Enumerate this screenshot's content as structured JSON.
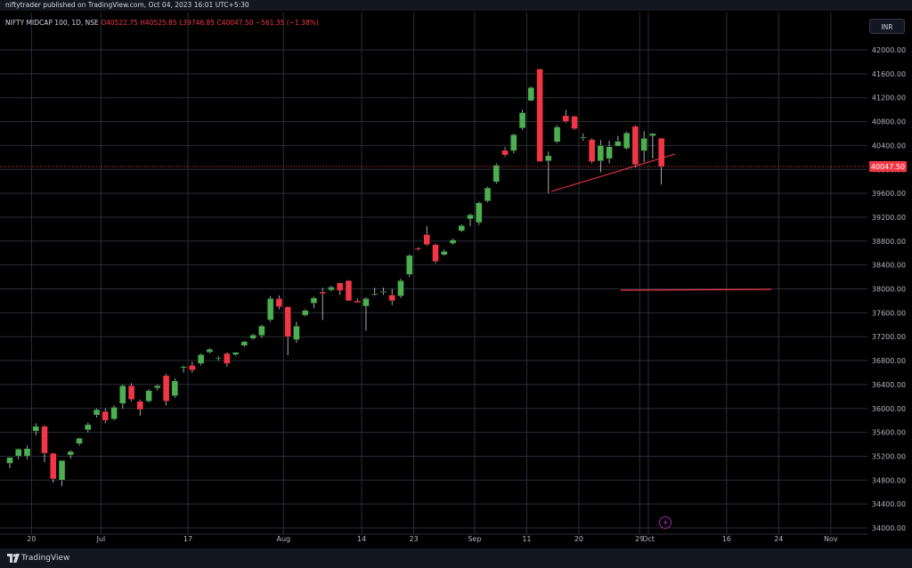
{
  "header": {
    "published": "niftytrader published on TradingView.com, Oct 04, 2023 16:01 UTC+5:30"
  },
  "symbol": {
    "name": "NIFTY MIDCAP 100, 1D, NSE",
    "open": "O40522.75",
    "high": "H40525.85",
    "low": "L39746.85",
    "close": "C40047.50",
    "change": "−561.35 (−1.38%)"
  },
  "currency_button": "INR",
  "last_price_label": "40047.50",
  "footer": {
    "brand": "TradingView"
  },
  "colors": {
    "up": "#4caf50",
    "down": "#f23645",
    "grid": "#2a2e39",
    "background": "#000000"
  },
  "chart_data": {
    "type": "candlestick",
    "y_ticks": [
      "42000.00",
      "41600.00",
      "41200.00",
      "40800.00",
      "40400.00",
      "40000.00",
      "39600.00",
      "39200.00",
      "38800.00",
      "38400.00",
      "38000.00",
      "37600.00",
      "37200.00",
      "36800.00",
      "36400.00",
      "36000.00",
      "35600.00",
      "35200.00",
      "34800.00",
      "34400.00",
      "34000.00"
    ],
    "y_ticks_values": [
      42000,
      41600,
      41200,
      40800,
      40400,
      40000,
      39600,
      39200,
      38800,
      38400,
      38000,
      37600,
      37200,
      36800,
      36400,
      36000,
      35600,
      35200,
      34800,
      34400,
      34000
    ],
    "ylim": [
      34000,
      42000
    ],
    "x_ticks": [
      {
        "label": "20",
        "index": 2.5
      },
      {
        "label": "Jul",
        "index": 10.5
      },
      {
        "label": "17",
        "index": 20.5
      },
      {
        "label": "Aug",
        "index": 31.5
      },
      {
        "label": "14",
        "index": 40.5
      },
      {
        "label": "23",
        "index": 46.5
      },
      {
        "label": "Sep",
        "index": 53.5
      },
      {
        "label": "11",
        "index": 59.5
      },
      {
        "label": "20",
        "index": 65.5
      },
      {
        "label": "29",
        "index": 72.5
      },
      {
        "label": "Oct",
        "index": 73.5
      },
      {
        "label": "16",
        "index": 82.5
      },
      {
        "label": "24",
        "index": 88.5
      },
      {
        "label": "Nov",
        "index": 94.5
      }
    ],
    "last_price": 40047.5,
    "candles": [
      {
        "o": 35080,
        "h": 35180,
        "l": 35000,
        "c": 35180
      },
      {
        "o": 35200,
        "h": 35330,
        "l": 35150,
        "c": 35320
      },
      {
        "o": 35200,
        "h": 35380,
        "l": 35150,
        "c": 35330
      },
      {
        "o": 35620,
        "h": 35750,
        "l": 35550,
        "c": 35700
      },
      {
        "o": 35700,
        "h": 35720,
        "l": 35100,
        "c": 35250
      },
      {
        "o": 35250,
        "h": 35260,
        "l": 34760,
        "c": 34820
      },
      {
        "o": 34800,
        "h": 35100,
        "l": 34700,
        "c": 35130
      },
      {
        "o": 35220,
        "h": 35300,
        "l": 35160,
        "c": 35280
      },
      {
        "o": 35410,
        "h": 35510,
        "l": 35380,
        "c": 35500
      },
      {
        "o": 35640,
        "h": 35760,
        "l": 35600,
        "c": 35730
      },
      {
        "o": 35890,
        "h": 36000,
        "l": 35850,
        "c": 35980
      },
      {
        "o": 35950,
        "h": 36000,
        "l": 35750,
        "c": 35800
      },
      {
        "o": 35820,
        "h": 36050,
        "l": 35800,
        "c": 36020
      },
      {
        "o": 36080,
        "h": 36400,
        "l": 36000,
        "c": 36380
      },
      {
        "o": 36380,
        "h": 36420,
        "l": 36120,
        "c": 36150
      },
      {
        "o": 36120,
        "h": 36150,
        "l": 35880,
        "c": 35980
      },
      {
        "o": 36120,
        "h": 36320,
        "l": 36100,
        "c": 36300
      },
      {
        "o": 36340,
        "h": 36400,
        "l": 36300,
        "c": 36380
      },
      {
        "o": 36550,
        "h": 36580,
        "l": 36050,
        "c": 36120
      },
      {
        "o": 36210,
        "h": 36500,
        "l": 36180,
        "c": 36460
      },
      {
        "o": 36680,
        "h": 36720,
        "l": 36600,
        "c": 36700
      },
      {
        "o": 36720,
        "h": 36780,
        "l": 36600,
        "c": 36640
      },
      {
        "o": 36750,
        "h": 36920,
        "l": 36720,
        "c": 36900
      },
      {
        "o": 36940,
        "h": 37010,
        "l": 36920,
        "c": 36990
      },
      {
        "o": 36840,
        "h": 36880,
        "l": 36800,
        "c": 36850
      },
      {
        "o": 36920,
        "h": 36940,
        "l": 36700,
        "c": 36750
      },
      {
        "o": 36900,
        "h": 36940,
        "l": 36880,
        "c": 36940
      },
      {
        "o": 37050,
        "h": 37130,
        "l": 37030,
        "c": 37120
      },
      {
        "o": 37170,
        "h": 37250,
        "l": 37150,
        "c": 37230
      },
      {
        "o": 37220,
        "h": 37400,
        "l": 37180,
        "c": 37380
      },
      {
        "o": 37480,
        "h": 37880,
        "l": 37450,
        "c": 37840
      },
      {
        "o": 37840,
        "h": 37890,
        "l": 37660,
        "c": 37700
      },
      {
        "o": 37700,
        "h": 37710,
        "l": 36890,
        "c": 37200
      },
      {
        "o": 37150,
        "h": 37450,
        "l": 37100,
        "c": 37380
      },
      {
        "o": 37560,
        "h": 37660,
        "l": 37540,
        "c": 37640
      },
      {
        "o": 37760,
        "h": 37870,
        "l": 37680,
        "c": 37850
      },
      {
        "o": 37950,
        "h": 38020,
        "l": 37480,
        "c": 37920
      },
      {
        "o": 37980,
        "h": 38050,
        "l": 37960,
        "c": 38030
      },
      {
        "o": 38100,
        "h": 38110,
        "l": 37900,
        "c": 37970
      },
      {
        "o": 38140,
        "h": 38150,
        "l": 37800,
        "c": 37800
      },
      {
        "o": 37800,
        "h": 37840,
        "l": 37780,
        "c": 37770
      },
      {
        "o": 37710,
        "h": 37860,
        "l": 37300,
        "c": 37840
      },
      {
        "o": 37910,
        "h": 38020,
        "l": 37880,
        "c": 37920
      },
      {
        "o": 37940,
        "h": 38020,
        "l": 37900,
        "c": 37960
      },
      {
        "o": 37900,
        "h": 38000,
        "l": 37730,
        "c": 37800
      },
      {
        "o": 37880,
        "h": 38170,
        "l": 37850,
        "c": 38140
      },
      {
        "o": 38240,
        "h": 38580,
        "l": 38200,
        "c": 38560
      },
      {
        "o": 38680,
        "h": 38700,
        "l": 38640,
        "c": 38660
      },
      {
        "o": 38910,
        "h": 39050,
        "l": 38720,
        "c": 38740
      },
      {
        "o": 38740,
        "h": 38760,
        "l": 38430,
        "c": 38460
      },
      {
        "o": 38570,
        "h": 38660,
        "l": 38550,
        "c": 38630
      },
      {
        "o": 38760,
        "h": 38840,
        "l": 38740,
        "c": 38820
      },
      {
        "o": 38970,
        "h": 39080,
        "l": 38950,
        "c": 39060
      },
      {
        "o": 39170,
        "h": 39260,
        "l": 39050,
        "c": 39240
      },
      {
        "o": 39110,
        "h": 39460,
        "l": 39070,
        "c": 39440
      },
      {
        "o": 39470,
        "h": 39710,
        "l": 39450,
        "c": 39690
      },
      {
        "o": 39790,
        "h": 40100,
        "l": 39760,
        "c": 40070
      },
      {
        "o": 40320,
        "h": 40370,
        "l": 40210,
        "c": 40240
      },
      {
        "o": 40310,
        "h": 40600,
        "l": 40270,
        "c": 40580
      },
      {
        "o": 40690,
        "h": 41000,
        "l": 40660,
        "c": 40950
      },
      {
        "o": 41150,
        "h": 41390,
        "l": 41140,
        "c": 41370
      },
      {
        "o": 41680,
        "h": 41680,
        "l": 40130,
        "c": 40130
      },
      {
        "o": 40140,
        "h": 40300,
        "l": 39600,
        "c": 40230
      },
      {
        "o": 40460,
        "h": 40740,
        "l": 40440,
        "c": 40710
      },
      {
        "o": 40900,
        "h": 40990,
        "l": 40780,
        "c": 40800
      },
      {
        "o": 40890,
        "h": 40900,
        "l": 40660,
        "c": 40680
      },
      {
        "o": 40520,
        "h": 40600,
        "l": 40480,
        "c": 40540
      },
      {
        "o": 40500,
        "h": 40520,
        "l": 40100,
        "c": 40130
      },
      {
        "o": 40140,
        "h": 40490,
        "l": 39950,
        "c": 40400
      },
      {
        "o": 40180,
        "h": 40480,
        "l": 40100,
        "c": 40380
      },
      {
        "o": 40390,
        "h": 40560,
        "l": 40380,
        "c": 40470
      },
      {
        "o": 40350,
        "h": 40630,
        "l": 40330,
        "c": 40610
      },
      {
        "o": 40720,
        "h": 40740,
        "l": 40030,
        "c": 40080
      },
      {
        "o": 40310,
        "h": 40640,
        "l": 40120,
        "c": 40520
      },
      {
        "o": 40560,
        "h": 40610,
        "l": 40180,
        "c": 40600
      },
      {
        "o": 40522.75,
        "h": 40525.85,
        "l": 39746.85,
        "c": 40047.5
      }
    ]
  }
}
